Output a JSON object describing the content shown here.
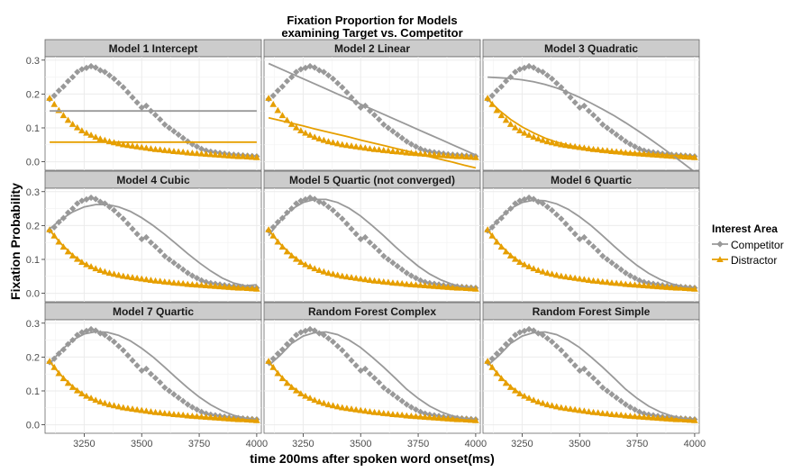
{
  "chart_data": {
    "type": "scatter",
    "title_lines": [
      "Fixation Proportion for Models",
      "examining Target vs. Competitor"
    ],
    "xlabel": "time 200ms after spoken word onset(ms)",
    "ylabel": "Fixation Probability",
    "xlim": [
      3080,
      4020
    ],
    "ylim": [
      -0.025,
      0.31
    ],
    "x_ticks": [
      3250,
      3500,
      3750,
      4000
    ],
    "y_ticks": [
      0.0,
      0.1,
      0.2,
      0.3
    ],
    "x_tick_labels": [
      "3250",
      "3500",
      "3750",
      "4000"
    ],
    "y_tick_labels": [
      "0.0",
      "0.1",
      "0.2",
      "0.3"
    ],
    "grid": true,
    "legend": {
      "title": "Interest Area",
      "position": "right",
      "items": [
        {
          "label": "Competitor",
          "color": "#999999",
          "marker": "diamond"
        },
        {
          "label": "Distractor",
          "color": "#E69F00",
          "marker": "triangle"
        }
      ]
    },
    "colors": {
      "competitor": "#999999",
      "distractor": "#E69F00",
      "strip_bg": "#CCCCCC",
      "grid": "#ebebeb"
    },
    "observed": {
      "x": [
        3100,
        3120,
        3140,
        3160,
        3180,
        3200,
        3220,
        3240,
        3260,
        3280,
        3300,
        3320,
        3340,
        3360,
        3380,
        3400,
        3420,
        3440,
        3460,
        3480,
        3500,
        3520,
        3540,
        3560,
        3580,
        3600,
        3620,
        3640,
        3660,
        3680,
        3700,
        3720,
        3740,
        3760,
        3780,
        3800,
        3820,
        3840,
        3860,
        3880,
        3900,
        3920,
        3940,
        3960,
        3980,
        4000
      ],
      "competitor": [
        0.185,
        0.195,
        0.21,
        0.222,
        0.238,
        0.25,
        0.265,
        0.273,
        0.277,
        0.282,
        0.278,
        0.27,
        0.265,
        0.255,
        0.245,
        0.232,
        0.22,
        0.205,
        0.19,
        0.175,
        0.16,
        0.165,
        0.15,
        0.138,
        0.125,
        0.11,
        0.1,
        0.09,
        0.08,
        0.07,
        0.06,
        0.052,
        0.045,
        0.038,
        0.033,
        0.03,
        0.028,
        0.026,
        0.024,
        0.022,
        0.021,
        0.02,
        0.019,
        0.018,
        0.017,
        0.016
      ],
      "distractor": [
        0.188,
        0.17,
        0.152,
        0.137,
        0.123,
        0.111,
        0.101,
        0.092,
        0.085,
        0.079,
        0.073,
        0.068,
        0.064,
        0.06,
        0.057,
        0.054,
        0.051,
        0.049,
        0.047,
        0.045,
        0.043,
        0.041,
        0.039,
        0.037,
        0.036,
        0.034,
        0.033,
        0.031,
        0.03,
        0.029,
        0.027,
        0.026,
        0.025,
        0.024,
        0.023,
        0.022,
        0.021,
        0.02,
        0.019,
        0.018,
        0.017,
        0.016,
        0.016,
        0.015,
        0.014,
        0.013
      ]
    },
    "fit_x": [
      3100,
      3150,
      3200,
      3250,
      3300,
      3350,
      3400,
      3450,
      3500,
      3550,
      3600,
      3650,
      3700,
      3750,
      3800,
      3850,
      3900,
      3950,
      4000
    ],
    "panels": [
      {
        "name": "Model 1 Intercept",
        "competitor_fit": [
          0.15,
          0.15,
          0.15,
          0.15,
          0.15,
          0.15,
          0.15,
          0.15,
          0.15,
          0.15,
          0.15,
          0.15,
          0.15,
          0.15,
          0.15,
          0.15,
          0.15,
          0.15,
          0.15
        ],
        "distractor_fit": [
          0.058,
          0.058,
          0.058,
          0.058,
          0.058,
          0.058,
          0.058,
          0.058,
          0.058,
          0.058,
          0.058,
          0.058,
          0.058,
          0.058,
          0.058,
          0.058,
          0.058,
          0.058,
          0.058
        ]
      },
      {
        "name": "Model 2 Linear",
        "competitor_fit": [
          0.29,
          0.275,
          0.26,
          0.245,
          0.23,
          0.215,
          0.2,
          0.185,
          0.17,
          0.155,
          0.14,
          0.125,
          0.11,
          0.095,
          0.08,
          0.065,
          0.05,
          0.035,
          0.02
        ],
        "distractor_fit": [
          0.13,
          0.122,
          0.114,
          0.106,
          0.097,
          0.089,
          0.081,
          0.073,
          0.064,
          0.056,
          0.048,
          0.04,
          0.032,
          0.023,
          0.015,
          0.007,
          -0.001,
          -0.01,
          -0.018
        ]
      },
      {
        "name": "Model 3 Quadratic",
        "competitor_fit": [
          0.25,
          0.248,
          0.246,
          0.242,
          0.236,
          0.228,
          0.218,
          0.205,
          0.19,
          0.173,
          0.155,
          0.136,
          0.115,
          0.093,
          0.07,
          0.046,
          0.021,
          -0.004,
          -0.03
        ],
        "distractor_fit": [
          0.185,
          0.152,
          0.125,
          0.103,
          0.085,
          0.07,
          0.058,
          0.049,
          0.042,
          0.037,
          0.033,
          0.03,
          0.027,
          0.025,
          0.023,
          0.021,
          0.019,
          0.017,
          0.015
        ]
      },
      {
        "name": "Model 4 Cubic",
        "competitor_fit": [
          0.19,
          0.218,
          0.24,
          0.255,
          0.262,
          0.262,
          0.255,
          0.242,
          0.223,
          0.2,
          0.174,
          0.146,
          0.117,
          0.09,
          0.066,
          0.045,
          0.03,
          0.022,
          0.025
        ],
        "distractor_fit": [
          0.186,
          0.146,
          0.113,
          0.088,
          0.07,
          0.058,
          0.049,
          0.043,
          0.038,
          0.034,
          0.031,
          0.028,
          0.026,
          0.024,
          0.021,
          0.019,
          0.017,
          0.015,
          0.013
        ]
      },
      {
        "name": "Model 5 Quartic (not converged)",
        "competitor_fit": [
          0.17,
          0.215,
          0.248,
          0.268,
          0.277,
          0.277,
          0.268,
          0.251,
          0.228,
          0.2,
          0.17,
          0.138,
          0.108,
          0.08,
          0.057,
          0.039,
          0.026,
          0.018,
          0.015
        ],
        "distractor_fit": [
          0.186,
          0.146,
          0.113,
          0.088,
          0.07,
          0.058,
          0.049,
          0.043,
          0.038,
          0.034,
          0.031,
          0.028,
          0.026,
          0.024,
          0.021,
          0.019,
          0.017,
          0.015,
          0.013
        ]
      },
      {
        "name": "Model 6 Quartic",
        "competitor_fit": [
          0.18,
          0.22,
          0.25,
          0.268,
          0.275,
          0.273,
          0.264,
          0.248,
          0.226,
          0.2,
          0.17,
          0.139,
          0.109,
          0.082,
          0.059,
          0.041,
          0.028,
          0.02,
          0.016
        ],
        "distractor_fit": [
          0.186,
          0.146,
          0.113,
          0.088,
          0.07,
          0.058,
          0.049,
          0.043,
          0.038,
          0.034,
          0.031,
          0.028,
          0.026,
          0.024,
          0.021,
          0.019,
          0.017,
          0.015,
          0.013
        ]
      },
      {
        "name": "Model 7 Quartic",
        "competitor_fit": [
          0.18,
          0.22,
          0.25,
          0.268,
          0.275,
          0.273,
          0.264,
          0.248,
          0.226,
          0.2,
          0.17,
          0.139,
          0.109,
          0.082,
          0.059,
          0.041,
          0.028,
          0.02,
          0.016
        ],
        "distractor_fit": [
          0.186,
          0.146,
          0.113,
          0.088,
          0.07,
          0.058,
          0.049,
          0.043,
          0.038,
          0.034,
          0.031,
          0.028,
          0.026,
          0.024,
          0.021,
          0.019,
          0.017,
          0.015,
          0.013
        ]
      },
      {
        "name": "Random Forest Complex",
        "competitor_fit": [
          0.175,
          0.205,
          0.24,
          0.262,
          0.272,
          0.274,
          0.266,
          0.25,
          0.228,
          0.2,
          0.17,
          0.138,
          0.105,
          0.078,
          0.055,
          0.038,
          0.026,
          0.019,
          0.016
        ],
        "distractor_fit": [
          0.186,
          0.146,
          0.113,
          0.088,
          0.07,
          0.058,
          0.049,
          0.043,
          0.038,
          0.034,
          0.031,
          0.028,
          0.026,
          0.024,
          0.021,
          0.019,
          0.017,
          0.015,
          0.013
        ]
      },
      {
        "name": "Random Forest Simple",
        "competitor_fit": [
          0.175,
          0.205,
          0.24,
          0.262,
          0.272,
          0.274,
          0.266,
          0.25,
          0.228,
          0.2,
          0.17,
          0.138,
          0.105,
          0.078,
          0.055,
          0.038,
          0.026,
          0.019,
          0.016
        ],
        "distractor_fit": [
          0.186,
          0.146,
          0.113,
          0.088,
          0.07,
          0.058,
          0.049,
          0.043,
          0.038,
          0.034,
          0.031,
          0.028,
          0.026,
          0.024,
          0.021,
          0.019,
          0.017,
          0.015,
          0.013
        ]
      }
    ]
  }
}
